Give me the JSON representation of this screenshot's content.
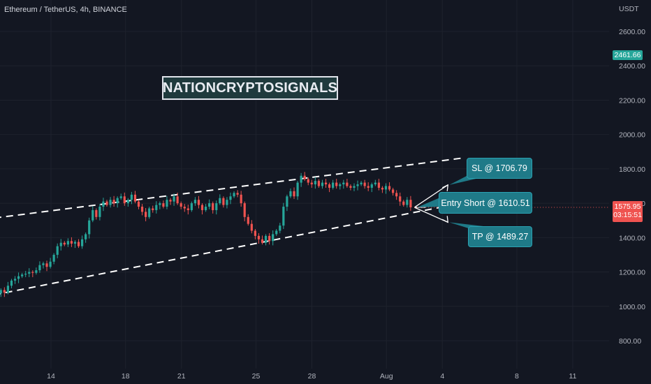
{
  "header": {
    "symbol_title": "Ethereum / TetherUS, 4h, BINANCE"
  },
  "watermark": {
    "text": "NATIONCRYPTOSIGNALS"
  },
  "callouts": {
    "sl": "SL @ 1706.79",
    "entry": "Entry Short @ 1610.51",
    "tp": "TP @ 1489.27"
  },
  "price_tags": {
    "high_marker": "2461.66",
    "last_price": "1575.95",
    "countdown": "03:15:51"
  },
  "colors": {
    "background": "#131722",
    "up_candle": "#26a69a",
    "down_candle": "#ef5350",
    "callout": "#1f7a88",
    "green_tag": "#26a69a",
    "red_tag": "#ef5350"
  },
  "chart_data": {
    "type": "candlestick",
    "currency_label": "USDT",
    "y_ticks": [
      "2600.00",
      "2400.00",
      "2200.00",
      "2000.00",
      "1800.00",
      "1600.00",
      "1400.00",
      "1200.00",
      "1000.00",
      "800.00"
    ],
    "y_tick_values": [
      2600,
      2400,
      2200,
      2000,
      1800,
      1600,
      1400,
      1200,
      1000,
      800
    ],
    "ylim": [
      720,
      2680
    ],
    "x_ticks": [
      "14",
      "18",
      "21",
      "25",
      "28",
      "Aug",
      "4",
      "8",
      "11"
    ],
    "x_tick_days": [
      14,
      18,
      21,
      25,
      28,
      32,
      35,
      39,
      42
    ],
    "xlim_days": [
      7.8,
      43.5
    ],
    "levels": {
      "stop_loss": 1706.79,
      "entry_short": 1610.51,
      "take_profit": 1489.27,
      "last_price": 1575.95
    },
    "channel": {
      "upper": [
        [
          7.8,
          1470
        ],
        [
          36,
          1862
        ]
      ],
      "lower": [
        [
          7.8,
          1000
        ],
        [
          36,
          1600
        ]
      ]
    },
    "candles_close": [
      1150,
      1155,
      1148,
      1140,
      1120,
      1100,
      1085,
      1070,
      1060,
      1040,
      1050,
      1045,
      1030,
      1055,
      1048,
      1070,
      1085,
      1075,
      1095,
      1080,
      1120,
      1150,
      1160,
      1175,
      1185,
      1190,
      1200,
      1195,
      1210,
      1240,
      1250,
      1230,
      1260,
      1300,
      1350,
      1370,
      1360,
      1380,
      1365,
      1375,
      1350,
      1390,
      1420,
      1500,
      1560,
      1520,
      1580,
      1610,
      1590,
      1620,
      1600,
      1630,
      1640,
      1600,
      1620,
      1650,
      1610,
      1580,
      1550,
      1520,
      1570,
      1560,
      1590,
      1600,
      1580,
      1620,
      1610,
      1640,
      1600,
      1580,
      1570,
      1560,
      1600,
      1620,
      1590,
      1560,
      1580,
      1600,
      1560,
      1600,
      1630,
      1590,
      1620,
      1640,
      1660,
      1650,
      1600,
      1520,
      1480,
      1440,
      1410,
      1390,
      1370,
      1410,
      1380,
      1420,
      1440,
      1470,
      1580,
      1640,
      1670,
      1640,
      1720,
      1760,
      1740,
      1720,
      1710,
      1730,
      1700,
      1720,
      1710,
      1690,
      1720,
      1700,
      1710,
      1720,
      1700,
      1690,
      1700,
      1710,
      1720,
      1700,
      1690,
      1710,
      1720,
      1690,
      1680,
      1700,
      1680,
      1660,
      1640,
      1610,
      1590,
      1620,
      1576
    ]
  }
}
